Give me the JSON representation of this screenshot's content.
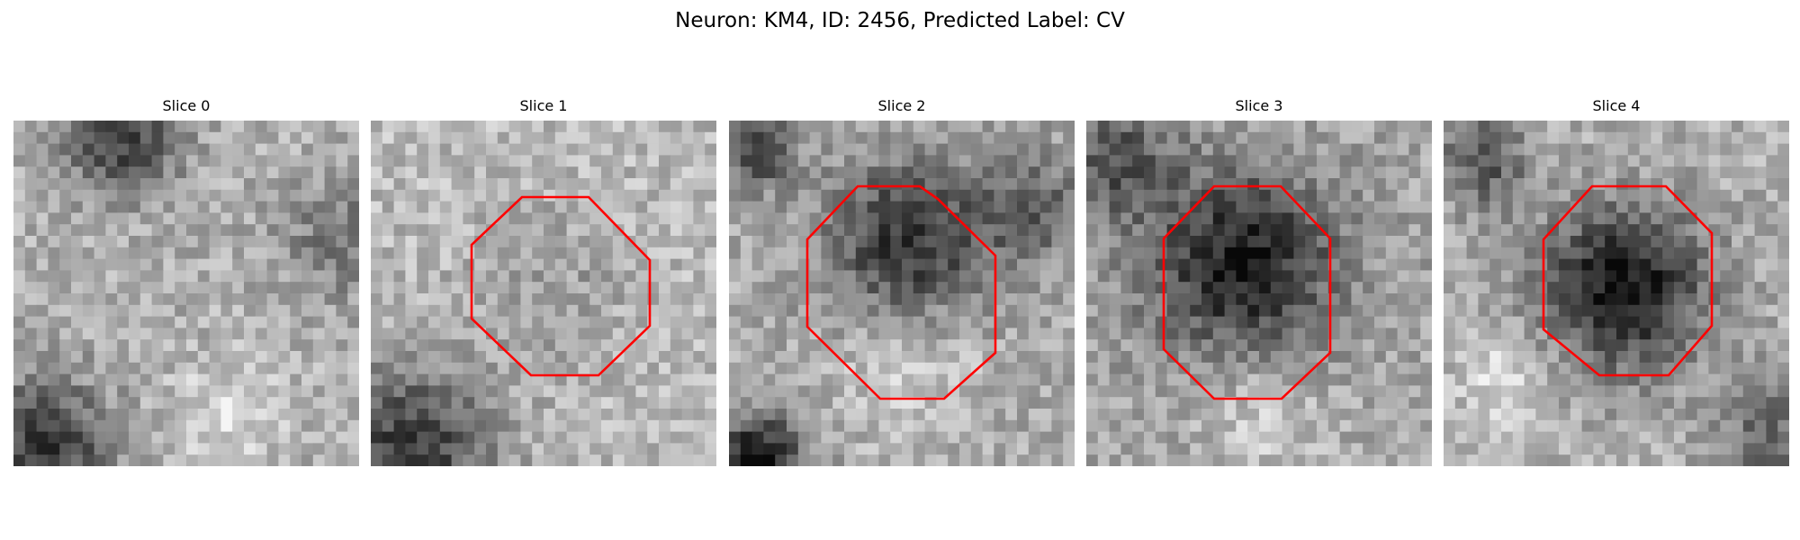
{
  "title": "Neuron: KM4, ID: 2456, Predicted Label: CV",
  "panels": [
    {
      "title": "Slice 0",
      "has_contour": false,
      "contour_color": "#ff0000"
    },
    {
      "title": "Slice 1",
      "has_contour": true,
      "contour_color": "#ff0000"
    },
    {
      "title": "Slice 2",
      "has_contour": true,
      "contour_color": "#ff0000"
    },
    {
      "title": "Slice 3",
      "has_contour": true,
      "contour_color": "#ff0000"
    },
    {
      "title": "Slice 4",
      "has_contour": true,
      "contour_color": "#ff0000"
    }
  ],
  "colormap": "gray"
}
